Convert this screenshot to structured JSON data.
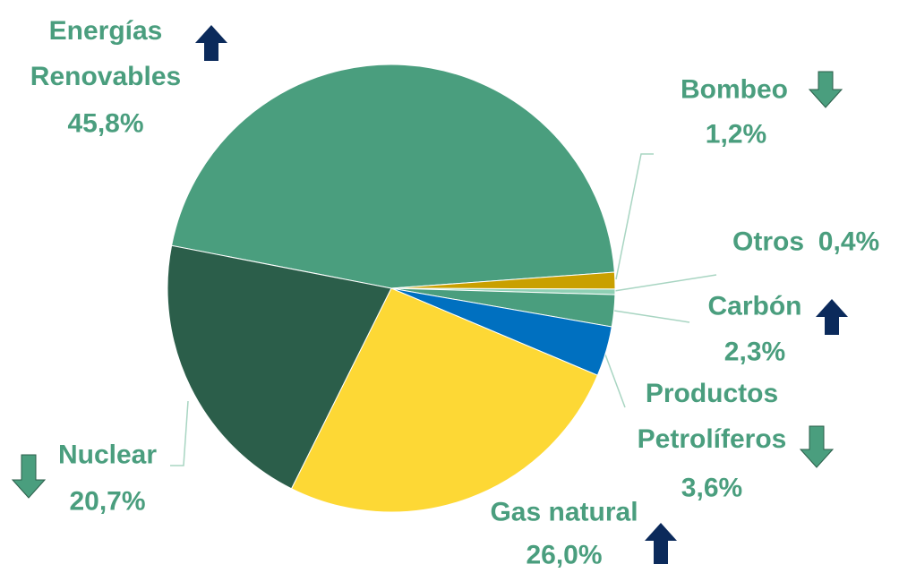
{
  "chart_data": {
    "type": "pie",
    "categories": [
      "Energías Renovables",
      "Bombeo",
      "Otros",
      "Carbón",
      "Productos Petrolíferos",
      "Gas natural",
      "Nuclear"
    ],
    "values": [
      45.8,
      1.2,
      0.4,
      2.3,
      3.6,
      26.0,
      20.7
    ],
    "value_labels": [
      "45,8%",
      "1,2%",
      "0,4%",
      "2,3%",
      "3,6%",
      "26,0%",
      "20,7%"
    ],
    "colors": [
      "#4a9e7e",
      "#c9a000",
      "#8fd0b4",
      "#4a9e7e",
      "#0070c0",
      "#fdd835",
      "#2b5e4a"
    ]
  }
}
